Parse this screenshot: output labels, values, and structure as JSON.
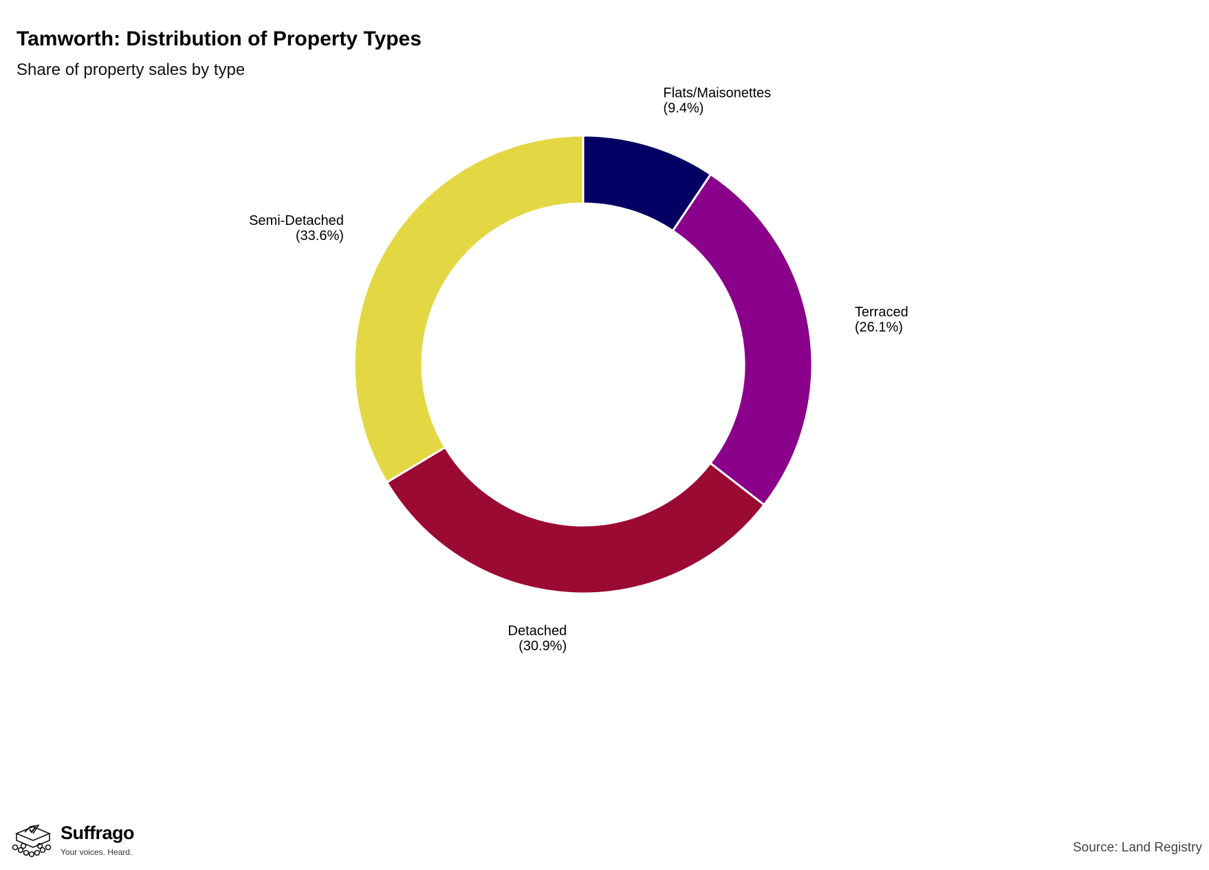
{
  "chart_data": {
    "type": "pie",
    "variant": "donut",
    "title": "Tamworth: Distribution of Property Types",
    "subtitle": "Share of property sales by type",
    "categories": [
      "Flats/Maisonettes",
      "Terraced",
      "Detached",
      "Semi-Detached"
    ],
    "values": [
      9.4,
      26.1,
      30.9,
      33.6
    ],
    "value_labels": [
      "(9.4%)",
      "(26.1%)",
      "(30.9%)",
      "(33.6%)"
    ],
    "colors": [
      "#020062",
      "#8a008a",
      "#9b0a32",
      "#e3d843"
    ],
    "start_angle": "12 o'clock",
    "direction": "clockwise",
    "legend": "none",
    "source": "Source: Land Registry"
  },
  "branding": {
    "name": "Suffrago",
    "tagline": "Your voices. Heard.",
    "icon": "ballot-box-icon"
  }
}
